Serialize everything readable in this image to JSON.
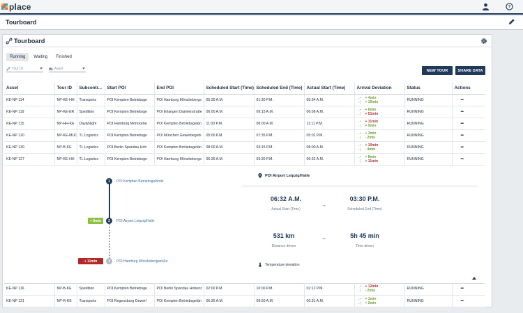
{
  "app": {
    "logo_text": "place"
  },
  "page": {
    "title": "Tourboard"
  },
  "card": {
    "title": "Tourboard"
  },
  "tabs": [
    {
      "label": "Running",
      "active": true
    },
    {
      "label": "Waiting",
      "active": false
    },
    {
      "label": "Finished",
      "active": false
    }
  ],
  "filters": {
    "tour_id_placeholder": "Tour ID",
    "asset_placeholder": "Asset"
  },
  "buttons": {
    "new_tour": "NEW TOUR",
    "share_data": "SHARE DATA"
  },
  "table": {
    "headers": [
      "Asset",
      "Tour ID",
      "Subcontr...",
      "Start POI",
      "End POI",
      "Scheduled Start (Time)",
      "Scheduled End (Time)",
      "Actual Start (Time)",
      "Arrival Deviation",
      "Status",
      "Actions"
    ],
    "deviation_labels": {
      "start": "→•",
      "end": "→|"
    },
    "rows": [
      {
        "asset": "KE-NP 114",
        "tour_id": "NP-KE-HH",
        "sub": "Transports",
        "start_poi": "POI Kempten Betriebsge",
        "end_poi": "POI Hamburg Mönckebergs",
        "sched_start": "05:30 A.M.",
        "sched_end": "01:30 P.M.",
        "actual_start": "05:34 A.M.",
        "dev1": "+ 4min",
        "dev1_type": "good",
        "dev2": "+ 15min",
        "dev2_type": "good",
        "status": "RUNNING",
        "actions": "•••"
      },
      {
        "asset": "KE-NP 119",
        "tour_id": "NP-KE-ER",
        "sub": "Spedition",
        "start_poi": "POI Kempten Betriebsge",
        "end_poi": "POI Erlangen Daimlerstraße",
        "sched_start": "06:00 A.M.",
        "sched_end": "09:15 A.M.",
        "actual_start": "06:08 A.M.",
        "dev1": "+ 8min",
        "dev1_type": "good",
        "dev2": "+ 51min",
        "dev2_type": "bad",
        "status": "RUNNING",
        "actions": "•••"
      },
      {
        "asset": "KE-NP 115",
        "tour_id": "NP-HH-KE",
        "sub": "Day&Night",
        "start_poi": "POI Hamburg Mönckebe",
        "end_poi": "POI Kempten Betriebsgelän",
        "sched_start": "11:00 P.M.",
        "sched_end": "08:00 A.M.",
        "actual_start": "11:11 P.M.",
        "dev1": "+ 11min",
        "dev1_type": "bad",
        "dev2": "+ 9min",
        "dev2_type": "good",
        "status": "RUNNING",
        "actions": "•••"
      },
      {
        "asset": "KE-NP 120",
        "tour_id": "NP-KE-MUC",
        "sub": "TL Logistics",
        "start_poi": "POI Kempten Betriebsge",
        "end_poi": "POI München Gewerbegebi",
        "sched_start": "05:00 P.M.",
        "sched_end": "07:35 P.M.",
        "actual_start": "05:01 P.M.",
        "dev1": "+ 3min",
        "dev1_type": "good",
        "dev2": "- 2min",
        "dev2_type": "good",
        "status": "RUNNING",
        "actions": "•••"
      },
      {
        "asset": "KE-NP 130",
        "tour_id": "NP-B-KE",
        "sub": "TL Logistics",
        "start_poi": "POI Berlin Spandau Hoh",
        "end_poi": "POI Kempten Betriebsgelän",
        "sched_start": "08:00 A.M.",
        "sched_end": "03:15 P.M.",
        "actual_start": "08:00 A.M.",
        "dev1": "+ 10min",
        "dev1_type": "bad",
        "dev2": "- 4min",
        "dev2_type": "good",
        "status": "RUNNING",
        "actions": "•••"
      },
      {
        "asset": "KE-NP 127",
        "tour_id": "NP-KE-HH",
        "sub": "TL Logistics",
        "start_poi": "POI Kempten Betriebsge",
        "end_poi": "POI Hamburg Mönckebergs",
        "sched_start": "06:30 A.M.",
        "sched_end": "03:30 P.M.",
        "actual_start": "06:32 A.M.",
        "dev1": "+ 8min",
        "dev1_type": "good",
        "dev2": "+ 11min",
        "dev2_type": "bad",
        "status": "RUNNING",
        "actions": "•••"
      }
    ],
    "rows_bottom": [
      {
        "asset": "KE-NP 116",
        "tour_id": "NP-B-KE",
        "sub": "Spedition",
        "start_poi": "POI Kempten Betriebsge",
        "end_poi": "POI Berlin Spandau Hohenz",
        "sched_start": "02:00 P.M.",
        "sched_end": "10:00 P.M.",
        "actual_start": "02:12 P.M.",
        "dev1": "+ 12min",
        "dev1_type": "bad",
        "dev2": "- 2min",
        "dev2_type": "good",
        "status": "RUNNING",
        "actions": "•••"
      },
      {
        "asset": "KE-NP 121",
        "tour_id": "NP-R-KE",
        "sub": "Transports",
        "start_poi": "POI Regensburg Gewerl",
        "end_poi": "POI Kempten Betriebsgelän",
        "sched_start": "06:30 A.M.",
        "sched_end": "09:50 A.M.",
        "actual_start": "06:31 A.M.",
        "dev1": "+ 1min",
        "dev1_type": "good",
        "dev2": "+ 2min",
        "dev2_type": "good",
        "status": "RUNNING",
        "actions": "•••"
      }
    ]
  },
  "detail": {
    "stops": [
      {
        "num": "1",
        "label": "POI Kempten Betriebsgelände"
      },
      {
        "num": "2",
        "label": "POI Airport Leipzig/Halle",
        "badge": "+ 8min",
        "badge_color": "#8cbf3f"
      },
      {
        "num": "3",
        "label": "POI Hamburg Mönckebergstraße",
        "badge": "+ 11min",
        "badge_color": "#b52626"
      }
    ],
    "current_poi": "POI Airport Leipzig/Halle",
    "actual_start": {
      "value": "06:32 A.M.",
      "label": "Actual Start (Time)"
    },
    "scheduled_end": {
      "value": "03:30 P.M.",
      "label": "Scheduled End (Time)"
    },
    "distance": {
      "value": "531 km",
      "label": "Distance driven"
    },
    "time": {
      "value": "5h 45 min",
      "label": "Time driven"
    },
    "temperature": "Temperature deviation"
  },
  "colors": {
    "primary": "#1f3a5a",
    "good": "#6aa22a",
    "bad": "#c22a2a",
    "link": "#3b6ea5"
  }
}
